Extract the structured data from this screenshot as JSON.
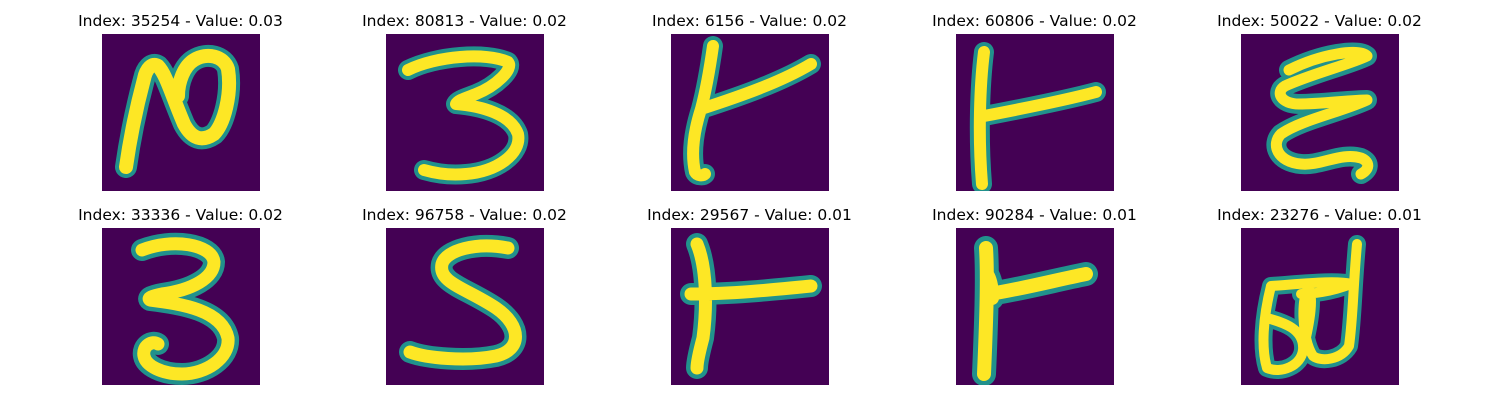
{
  "colors": {
    "background": "#440154",
    "stroke_mid": "#21918c",
    "stroke_core": "#fde725"
  },
  "panels": [
    {
      "label": "Index: 35254 - Value: 0.03",
      "glyph": "script-letter-ru-glyph"
    },
    {
      "label": "Index: 80813 - Value: 0.02",
      "glyph": "three-glyph"
    },
    {
      "label": "Index: 6156 - Value: 0.02",
      "glyph": "curved-t-glyph"
    },
    {
      "label": "Index: 60806 - Value: 0.02",
      "glyph": "right-tee-glyph"
    },
    {
      "label": "Index: 50022 - Value: 0.02",
      "glyph": "epsilon-glyph"
    },
    {
      "label": "Index: 33336 - Value: 0.02",
      "glyph": "three-glyph"
    },
    {
      "label": "Index: 96758 - Value: 0.02",
      "glyph": "five-glyph"
    },
    {
      "label": "Index: 29567 - Value: 0.01",
      "glyph": "right-tee-glyph"
    },
    {
      "label": "Index: 90284 - Value: 0.01",
      "glyph": "flag-glyph"
    },
    {
      "label": "Index: 23276 - Value: 0.01",
      "glyph": "script-b-d-glyph"
    }
  ]
}
